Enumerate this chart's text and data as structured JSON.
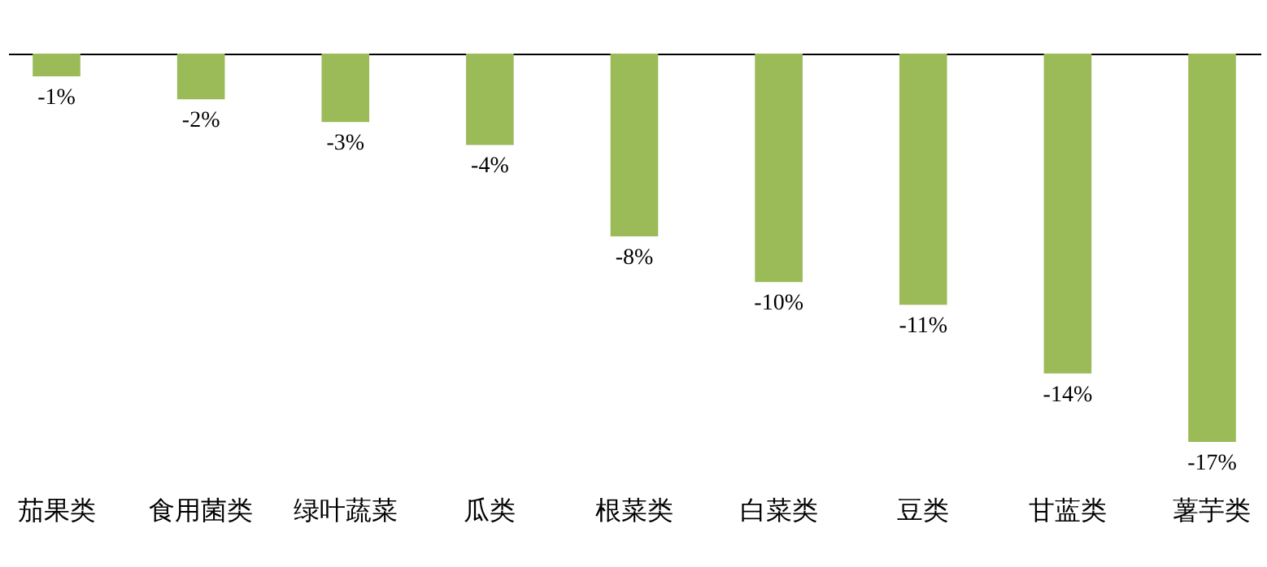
{
  "chart_data": {
    "type": "bar",
    "categories": [
      "茄果类",
      "食用菌类",
      "绿叶蔬菜",
      "瓜类",
      "根菜类",
      "白菜类",
      "豆类",
      "甘蓝类",
      "薯芋类"
    ],
    "values": [
      -1,
      -2,
      -3,
      -4,
      -8,
      -10,
      -11,
      -14,
      -17
    ],
    "value_labels": [
      "-1%",
      "-2%",
      "-3%",
      "-4%",
      "-8%",
      "-10%",
      "-11%",
      "-14%",
      "-17%"
    ],
    "color": "#9bbb59",
    "grid": false
  }
}
